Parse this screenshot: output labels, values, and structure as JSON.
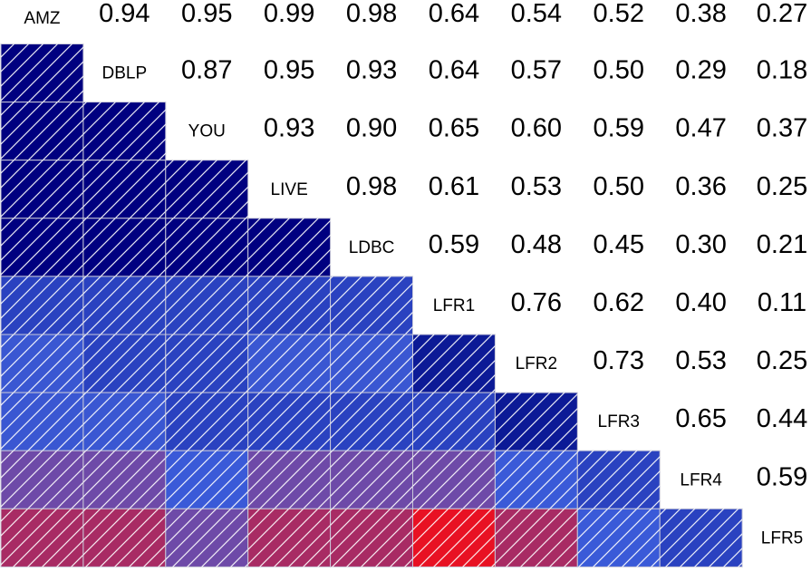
{
  "chart_data": {
    "type": "heatmap",
    "layout": "lower-triangle colored cells, upper-triangle numeric values, dataset names on diagonal",
    "datasets": [
      "AMZ",
      "DBLP",
      "YOU",
      "LIVE",
      "LDBC",
      "LFR1",
      "LFR2",
      "LFR3",
      "LFR4",
      "LFR5"
    ],
    "upper_values": [
      [
        null,
        0.94,
        0.95,
        0.99,
        0.98,
        0.64,
        0.54,
        0.52,
        0.38,
        0.27
      ],
      [
        null,
        null,
        0.87,
        0.95,
        0.93,
        0.64,
        0.57,
        0.5,
        0.29,
        0.18
      ],
      [
        null,
        null,
        null,
        0.93,
        0.9,
        0.65,
        0.6,
        0.59,
        0.47,
        0.37
      ],
      [
        null,
        null,
        null,
        null,
        0.98,
        0.61,
        0.53,
        0.5,
        0.36,
        0.25
      ],
      [
        null,
        null,
        null,
        null,
        null,
        0.59,
        0.48,
        0.45,
        0.3,
        0.21
      ],
      [
        null,
        null,
        null,
        null,
        null,
        null,
        0.76,
        0.62,
        0.4,
        0.11
      ],
      [
        null,
        null,
        null,
        null,
        null,
        null,
        null,
        0.73,
        0.53,
        0.25
      ],
      [
        null,
        null,
        null,
        null,
        null,
        null,
        null,
        null,
        0.65,
        0.44
      ],
      [
        null,
        null,
        null,
        null,
        null,
        null,
        null,
        null,
        null,
        0.59
      ],
      [
        null,
        null,
        null,
        null,
        null,
        null,
        null,
        null,
        null,
        null
      ]
    ],
    "lower_colors": [
      [],
      [
        "#000080"
      ],
      [
        "#000080",
        "#000080"
      ],
      [
        "#000080",
        "#000080",
        "#000080"
      ],
      [
        "#000080",
        "#000080",
        "#000080",
        "#000080"
      ],
      [
        "#2a42c0",
        "#2a42c0",
        "#2a42c0",
        "#2a42c0",
        "#2a42c0"
      ],
      [
        "#3a57d2",
        "#2a42c0",
        "#2a42c0",
        "#3a57d2",
        "#3a57d2",
        "#0c1a96"
      ],
      [
        "#3a57d2",
        "#3a57d2",
        "#2a42c0",
        "#2a42c0",
        "#2a42c0",
        "#2a42c0",
        "#0c1a96"
      ],
      [
        "#6e4aa8",
        "#6e4aa8",
        "#3a5ad8",
        "#6e4aa8",
        "#6e4aa8",
        "#6e4aa8",
        "#3a5ad8",
        "#2a42c0"
      ],
      [
        "#a82b64",
        "#a82b64",
        "#6e4aa8",
        "#a82b64",
        "#a82b64",
        "#e81123",
        "#a82b64",
        "#3a5ad8",
        "#2a42c0"
      ]
    ],
    "hatch": "diagonal white stripes",
    "grid": false,
    "legend": "none"
  }
}
